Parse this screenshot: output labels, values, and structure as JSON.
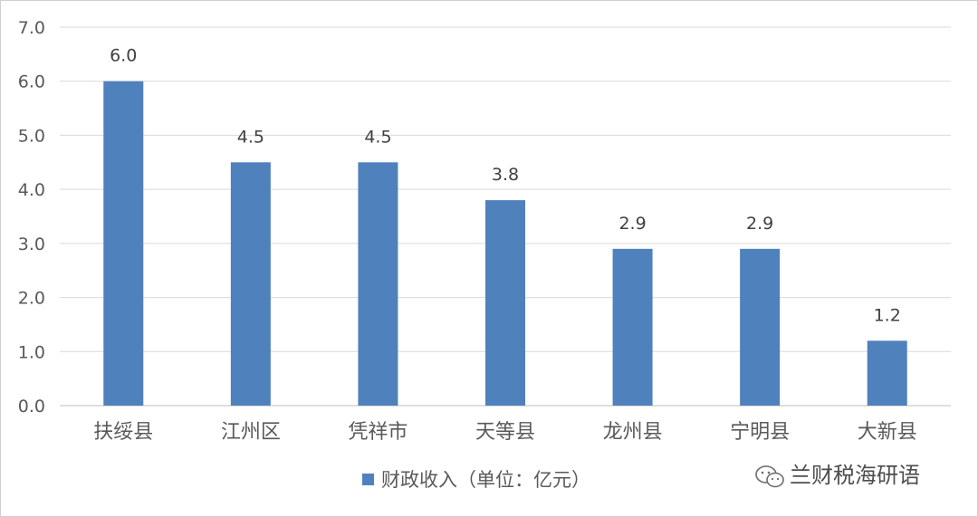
{
  "chart_data": {
    "type": "bar",
    "categories": [
      "扶绥县",
      "江州区",
      "凭祥市",
      "天等县",
      "龙州县",
      "宁明县",
      "大新县"
    ],
    "series": [
      {
        "name": "财政收入（单位：亿元）",
        "values": [
          6.0,
          4.5,
          4.5,
          3.8,
          2.9,
          2.9,
          1.2
        ],
        "color": "#4f81bd"
      }
    ],
    "data_labels": [
      "6.0",
      "4.5",
      "4.5",
      "3.8",
      "2.9",
      "2.9",
      "1.2"
    ],
    "y_ticks": [
      "0.0",
      "1.0",
      "2.0",
      "3.0",
      "4.0",
      "5.0",
      "6.0",
      "7.0"
    ],
    "ylim": [
      0,
      7
    ],
    "grid": true,
    "legend_position": "bottom"
  },
  "watermark": {
    "text": "兰财税海研语"
  },
  "colors": {
    "bar": "#4f81bd",
    "grid": "#d9d9d9",
    "border": "#d0d0d0"
  }
}
